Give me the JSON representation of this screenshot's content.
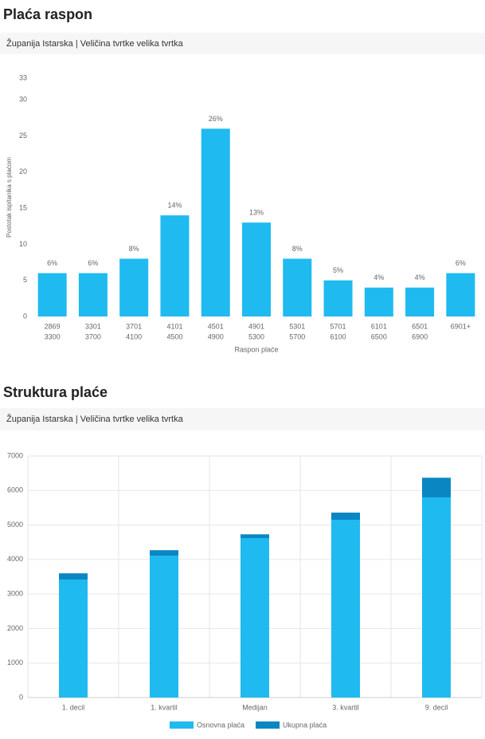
{
  "chart_data": [
    {
      "type": "bar",
      "title": "Plaća raspon",
      "subtitle": "Županija Istarska | Veličina tvrtke velika tvrtka",
      "x_label": "Raspon plaće",
      "y_label": "Postotak ispitanika s plaćom",
      "categories": [
        [
          "2869",
          "3300"
        ],
        [
          "3301",
          "3700"
        ],
        [
          "3701",
          "4100"
        ],
        [
          "4101",
          "4500"
        ],
        [
          "4501",
          "4900"
        ],
        [
          "4901",
          "5300"
        ],
        [
          "5301",
          "5700"
        ],
        [
          "5701",
          "6100"
        ],
        [
          "6101",
          "6500"
        ],
        [
          "6501",
          "6900"
        ],
        [
          "6901+"
        ]
      ],
      "values": [
        6,
        6,
        8,
        14,
        26,
        13,
        8,
        5,
        4,
        4,
        6
      ],
      "value_labels": [
        "6%",
        "6%",
        "8%",
        "14%",
        "26%",
        "13%",
        "8%",
        "5%",
        "4%",
        "4%",
        "6%"
      ],
      "color": "#1fbaf0",
      "ylim": [
        0,
        33
      ],
      "yticks": [
        0,
        5,
        10,
        15,
        20,
        25,
        30,
        33
      ],
      "grid": false
    },
    {
      "type": "stacked_bar",
      "title": "Struktura plaće",
      "subtitle": "Županija Istarska | Veličina tvrtke velika tvrtka",
      "categories": [
        "1. decil",
        "1. kvartil",
        "Medijan",
        "3. kvartil",
        "9. decil"
      ],
      "series": [
        {
          "name": "Osnovna plaća",
          "color": "#1fbaf0",
          "values": [
            3420,
            4110,
            4620,
            5150,
            5800
          ]
        },
        {
          "name": "Ukupna plaća",
          "color": "#0a87c2",
          "values": [
            180,
            160,
            110,
            210,
            570
          ]
        }
      ],
      "ylim": [
        0,
        7000
      ],
      "yticks": [
        0,
        1000,
        2000,
        3000,
        4000,
        5000,
        6000,
        7000
      ],
      "grid": true,
      "legend": "bottom"
    }
  ]
}
